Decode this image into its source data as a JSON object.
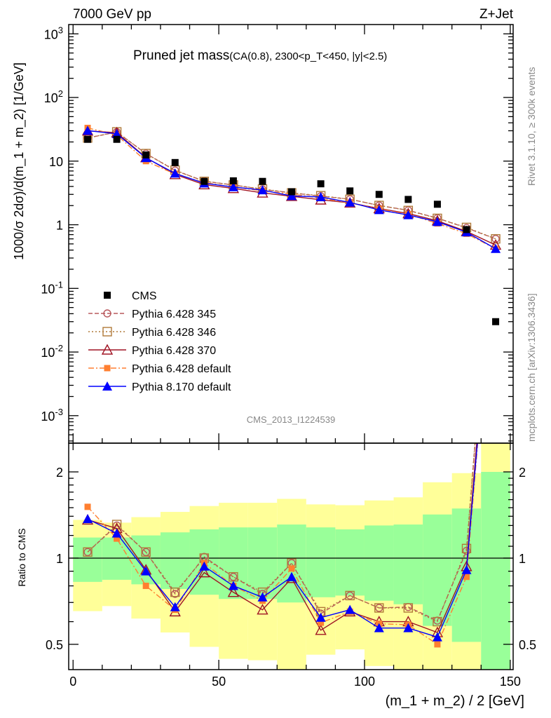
{
  "header": {
    "left": "7000 GeV pp",
    "right": "Z+Jet"
  },
  "side_labels": {
    "rivet": "Rivet 3.1.10, ≥ 300k events",
    "mcplots": "mcplots.cern.ch [arXiv:1306.3436]"
  },
  "analysis_id": "CMS_2013_I1224539",
  "chart_data": {
    "type": "line",
    "title": "Pruned jet mass",
    "subtitle": "(CA(0.8), 2300<p_T<450, |y|<2.5)",
    "xlabel": "(m_1 + m_2) / 2 [GeV]",
    "ylabel": "1000/σ 2dσ)/d(m_1 + m_2) [1/GeV]",
    "ratio_ylabel": "Ratio to CMS",
    "xlim": [
      -1.5,
      151
    ],
    "ylim": [
      0.00037,
      1400
    ],
    "yscale": "log",
    "ratio_ylim": [
      0.408,
      2.52
    ],
    "ratio_yscale": "log",
    "x_ticks": [
      "0",
      "50",
      "100",
      "150"
    ],
    "y_ticks": [
      "10^3",
      "10^2",
      "10",
      "1",
      "10^-1",
      "10^-2",
      "10^-3"
    ],
    "ratio_ticks": [
      "2",
      "1",
      "0.5"
    ],
    "legend_position": "middle-left",
    "x": [
      5,
      15,
      25,
      35,
      45,
      55,
      65,
      75,
      85,
      95,
      105,
      115,
      125,
      135,
      145
    ],
    "cms": {
      "name": "CMS",
      "values": [
        22,
        22,
        12.5,
        9.5,
        4.8,
        4.9,
        4.8,
        3.3,
        4.4,
        3.4,
        3.0,
        2.5,
        2.1,
        0.84,
        0.03
      ]
    },
    "series": [
      {
        "name": "Pythia 6.428 345",
        "color": "#b8585c",
        "ratio": [
          1.05,
          1.3,
          1.05,
          0.75,
          1.01,
          0.86,
          0.75,
          0.96,
          0.64,
          0.74,
          0.67,
          0.675,
          0.605,
          1.06,
          20
        ]
      },
      {
        "name": "Pythia 6.428 346",
        "color": "#b07a3a",
        "ratio": [
          1.05,
          1.31,
          1.05,
          0.76,
          1.0,
          0.86,
          0.76,
          0.96,
          0.65,
          0.74,
          0.67,
          0.67,
          0.6,
          1.08,
          20
        ]
      },
      {
        "name": "Pythia 6.428 370",
        "color": "#a01424",
        "ratio": [
          1.36,
          1.27,
          0.91,
          0.65,
          0.89,
          0.76,
          0.66,
          0.85,
          0.56,
          0.65,
          0.6,
          0.6,
          0.55,
          0.935,
          16
        ]
      },
      {
        "name": "Pythia 6.428 default",
        "color": "#ff7f30",
        "ratio": [
          1.51,
          1.17,
          0.8,
          0.66,
          0.96,
          0.8,
          0.71,
          0.92,
          0.595,
          0.65,
          0.59,
          0.585,
          0.5,
          0.86,
          14
        ]
      },
      {
        "name": "Pythia 8.170 default",
        "color": "#0000ff",
        "ratio": [
          1.37,
          1.22,
          0.9,
          0.675,
          0.936,
          0.8,
          0.73,
          0.86,
          0.62,
          0.66,
          0.57,
          0.57,
          0.53,
          0.91,
          14
        ]
      }
    ],
    "bands": {
      "bin_edges": [
        0,
        10,
        20,
        30,
        40,
        50,
        60,
        70,
        80,
        90,
        100,
        110,
        120,
        130,
        140,
        150
      ],
      "yellow_hi": [
        1.36,
        1.33,
        1.39,
        1.45,
        1.52,
        1.56,
        1.56,
        1.61,
        1.54,
        1.53,
        1.59,
        1.63,
        1.84,
        1.98,
        3.0
      ],
      "green_hi": [
        1.18,
        1.18,
        1.2,
        1.23,
        1.26,
        1.28,
        1.28,
        1.31,
        1.28,
        1.26,
        1.3,
        1.31,
        1.42,
        1.49,
        2.0
      ],
      "green_lo": [
        0.826,
        0.84,
        0.81,
        0.78,
        0.745,
        0.72,
        0.72,
        0.7,
        0.73,
        0.74,
        0.71,
        0.69,
        0.58,
        0.51,
        0.3
      ],
      "yellow_lo": [
        0.653,
        0.68,
        0.615,
        0.55,
        0.49,
        0.445,
        0.44,
        0.3,
        0.46,
        0.48,
        0.42,
        0.3,
        0.3,
        0.3,
        0.3
      ]
    }
  }
}
